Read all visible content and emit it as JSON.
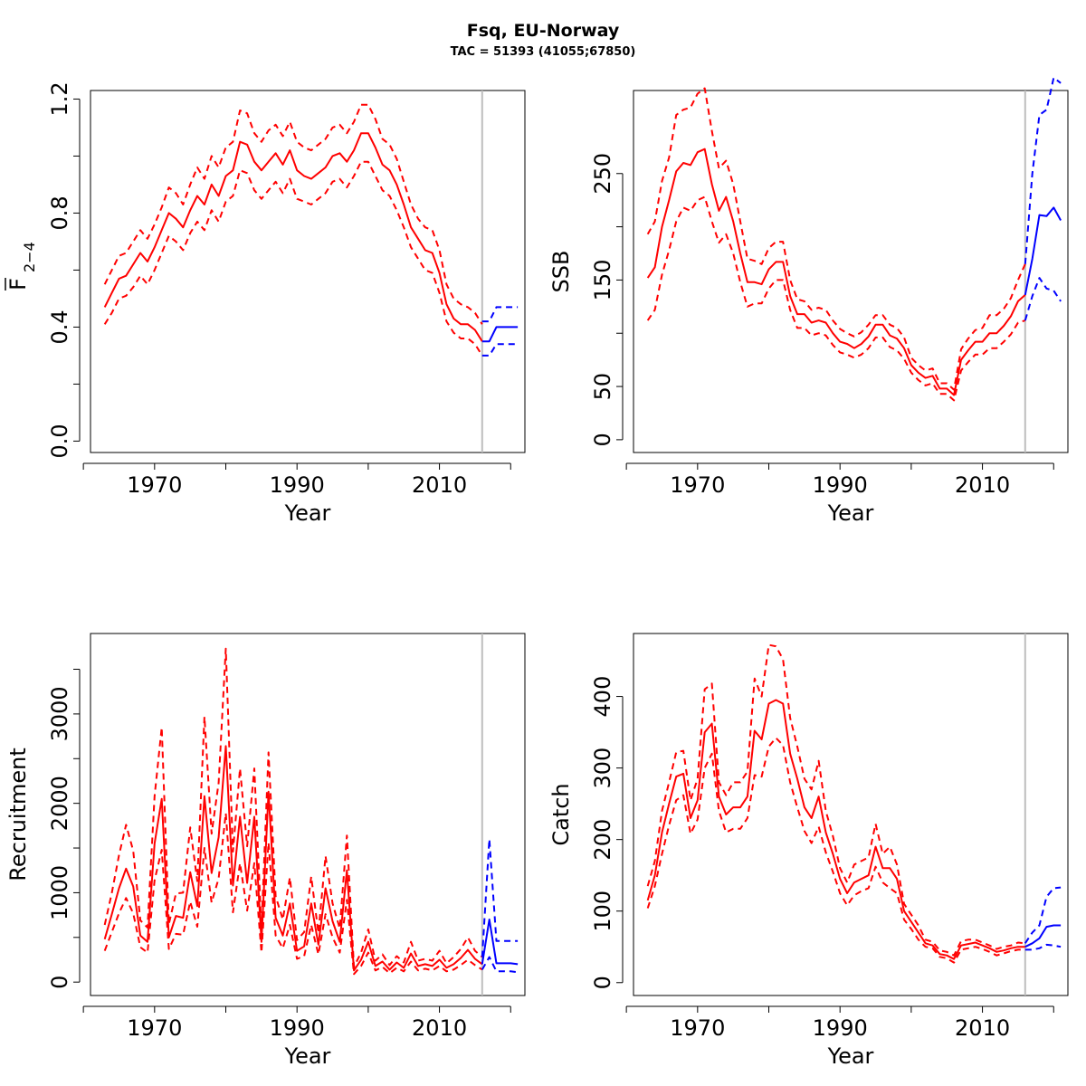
{
  "figure": {
    "title": "Fsq, EU-Norway",
    "subtitle": "TAC = 51393 (41055;67850)"
  },
  "colors": {
    "historical": "#ff0000",
    "forecast": "#0000ff",
    "divider": "#bebebe",
    "axis": "#000000"
  },
  "chart_data": [
    {
      "id": "f",
      "type": "line",
      "xlabel": "Year",
      "ylabel_main": "F",
      "ylabel_sub": "2−4",
      "ylabel_overbar": true,
      "xlim": [
        1961,
        2022
      ],
      "ylim": [
        -0.04,
        1.23
      ],
      "xticks": [
        1960,
        1970,
        1980,
        1990,
        2000,
        2010,
        2020
      ],
      "xtick_labels": [
        "1970",
        "1990",
        "2010"
      ],
      "xtick_label_values": [
        1970,
        1990,
        2010
      ],
      "yticks": [
        0.0,
        0.2,
        0.4,
        0.6,
        0.8,
        1.0,
        1.2
      ],
      "ytick_labels": [
        "0.0",
        "0.4",
        "0.8",
        "1.2"
      ],
      "ytick_label_values": [
        0.0,
        0.4,
        0.8,
        1.2
      ],
      "divider_year": 2016,
      "historical": {
        "x": [
          1963,
          1964,
          1965,
          1966,
          1967,
          1968,
          1969,
          1970,
          1971,
          1972,
          1973,
          1974,
          1975,
          1976,
          1977,
          1978,
          1979,
          1980,
          1981,
          1982,
          1983,
          1984,
          1985,
          1986,
          1987,
          1988,
          1989,
          1990,
          1991,
          1992,
          1993,
          1994,
          1995,
          1996,
          1997,
          1998,
          1999,
          2000,
          2001,
          2002,
          2003,
          2004,
          2005,
          2006,
          2007,
          2008,
          2009,
          2010,
          2011,
          2012,
          2013,
          2014,
          2015,
          2016
        ],
        "estimate": [
          0.47,
          0.52,
          0.57,
          0.58,
          0.62,
          0.66,
          0.63,
          0.68,
          0.74,
          0.8,
          0.78,
          0.75,
          0.81,
          0.86,
          0.83,
          0.9,
          0.86,
          0.93,
          0.95,
          1.05,
          1.04,
          0.98,
          0.95,
          0.98,
          1.01,
          0.97,
          1.02,
          0.95,
          0.93,
          0.92,
          0.94,
          0.96,
          1.0,
          1.01,
          0.98,
          1.02,
          1.08,
          1.08,
          1.03,
          0.97,
          0.95,
          0.9,
          0.83,
          0.75,
          0.71,
          0.67,
          0.66,
          0.59,
          0.48,
          0.43,
          0.41,
          0.41,
          0.39,
          0.35
        ],
        "upper": [
          0.55,
          0.6,
          0.65,
          0.66,
          0.7,
          0.74,
          0.71,
          0.76,
          0.82,
          0.89,
          0.87,
          0.83,
          0.9,
          0.96,
          0.92,
          1.0,
          0.96,
          1.03,
          1.05,
          1.16,
          1.15,
          1.08,
          1.05,
          1.09,
          1.11,
          1.07,
          1.12,
          1.05,
          1.03,
          1.02,
          1.04,
          1.06,
          1.1,
          1.11,
          1.08,
          1.12,
          1.18,
          1.18,
          1.13,
          1.06,
          1.04,
          0.99,
          0.91,
          0.83,
          0.78,
          0.75,
          0.74,
          0.67,
          0.55,
          0.5,
          0.48,
          0.47,
          0.45,
          0.41
        ],
        "lower": [
          0.41,
          0.45,
          0.5,
          0.51,
          0.54,
          0.58,
          0.55,
          0.6,
          0.66,
          0.72,
          0.7,
          0.67,
          0.73,
          0.77,
          0.74,
          0.81,
          0.77,
          0.84,
          0.86,
          0.95,
          0.94,
          0.88,
          0.85,
          0.88,
          0.91,
          0.87,
          0.92,
          0.85,
          0.84,
          0.83,
          0.85,
          0.87,
          0.91,
          0.92,
          0.89,
          0.93,
          0.98,
          0.98,
          0.93,
          0.88,
          0.86,
          0.81,
          0.75,
          0.68,
          0.64,
          0.6,
          0.59,
          0.52,
          0.42,
          0.38,
          0.36,
          0.36,
          0.34,
          0.3
        ]
      },
      "forecast": {
        "x": [
          2016,
          2017,
          2018,
          2019,
          2020,
          2021
        ],
        "estimate": [
          0.35,
          0.35,
          0.4,
          0.4,
          0.4,
          0.4
        ],
        "upper": [
          0.42,
          0.42,
          0.47,
          0.47,
          0.47,
          0.47
        ],
        "lower": [
          0.3,
          0.3,
          0.34,
          0.34,
          0.34,
          0.34
        ]
      }
    },
    {
      "id": "ssb",
      "type": "line",
      "xlabel": "Year",
      "ylabel_main": "SSB",
      "ylabel_sub": "",
      "ylabel_overbar": false,
      "xlim": [
        1961,
        2022
      ],
      "ylim": [
        -12,
        328
      ],
      "xticks": [
        1960,
        1970,
        1980,
        1990,
        2000,
        2010,
        2020
      ],
      "xtick_labels": [
        "1970",
        "1990",
        "2010"
      ],
      "xtick_label_values": [
        1970,
        1990,
        2010
      ],
      "yticks": [
        0,
        50,
        100,
        150,
        200,
        250
      ],
      "ytick_labels": [
        "0",
        "50",
        "150",
        "250"
      ],
      "ytick_label_values": [
        0,
        50,
        150,
        250
      ],
      "divider_year": 2016,
      "historical": {
        "x": [
          1963,
          1964,
          1965,
          1966,
          1967,
          1968,
          1969,
          1970,
          1971,
          1972,
          1973,
          1974,
          1975,
          1976,
          1977,
          1978,
          1979,
          1980,
          1981,
          1982,
          1983,
          1984,
          1985,
          1986,
          1987,
          1988,
          1989,
          1990,
          1991,
          1992,
          1993,
          1994,
          1995,
          1996,
          1997,
          1998,
          1999,
          2000,
          2001,
          2002,
          2003,
          2004,
          2005,
          2006,
          2007,
          2008,
          2009,
          2010,
          2011,
          2012,
          2013,
          2014,
          2015,
          2016
        ],
        "estimate": [
          152,
          162,
          200,
          225,
          252,
          260,
          258,
          270,
          273,
          240,
          215,
          228,
          205,
          175,
          148,
          148,
          146,
          160,
          167,
          167,
          135,
          118,
          118,
          110,
          112,
          110,
          100,
          92,
          90,
          86,
          90,
          97,
          108,
          108,
          98,
          95,
          86,
          70,
          63,
          58,
          60,
          48,
          48,
          42,
          75,
          84,
          92,
          92,
          100,
          100,
          107,
          116,
          130,
          136
        ],
        "upper": [
          193,
          205,
          243,
          265,
          305,
          310,
          312,
          325,
          330,
          290,
          255,
          262,
          240,
          205,
          170,
          168,
          165,
          180,
          186,
          186,
          150,
          132,
          130,
          122,
          124,
          122,
          112,
          104,
          100,
          97,
          101,
          108,
          117,
          117,
          108,
          105,
          96,
          77,
          70,
          65,
          67,
          53,
          53,
          47,
          85,
          95,
          103,
          105,
          117,
          117,
          123,
          133,
          150,
          165
        ],
        "lower": [
          112,
          122,
          155,
          178,
          205,
          218,
          215,
          225,
          228,
          205,
          185,
          193,
          175,
          148,
          125,
          128,
          128,
          142,
          150,
          150,
          122,
          105,
          105,
          98,
          100,
          98,
          89,
          82,
          80,
          77,
          80,
          86,
          96,
          96,
          87,
          84,
          76,
          63,
          56,
          51,
          53,
          43,
          43,
          37,
          65,
          73,
          80,
          80,
          86,
          86,
          92,
          99,
          110,
          112
        ]
      },
      "forecast": {
        "x": [
          2016,
          2017,
          2018,
          2019,
          2020,
          2021
        ],
        "estimate": [
          136,
          170,
          211,
          210,
          218,
          206
        ],
        "upper": [
          165,
          250,
          305,
          310,
          340,
          335
        ],
        "lower": [
          112,
          135,
          152,
          142,
          140,
          130
        ]
      }
    },
    {
      "id": "recruitment",
      "type": "line",
      "xlabel": "Year",
      "ylabel_main": "Recruitment",
      "ylabel_sub": "",
      "ylabel_overbar": false,
      "xlim": [
        1961,
        2022
      ],
      "ylim": [
        -150,
        3900
      ],
      "xticks": [
        1960,
        1970,
        1980,
        1990,
        2000,
        2010,
        2020
      ],
      "xtick_labels": [
        "1970",
        "1990",
        "2010"
      ],
      "xtick_label_values": [
        1970,
        1990,
        2010
      ],
      "yticks": [
        0,
        500,
        1000,
        1500,
        2000,
        2500,
        3000,
        3500
      ],
      "ytick_labels": [
        "0",
        "1000",
        "2000",
        "3000"
      ],
      "ytick_label_values": [
        0,
        1000,
        2000,
        3000
      ],
      "divider_year": 2016,
      "historical": {
        "x": [
          1963,
          1964,
          1965,
          1966,
          1967,
          1968,
          1969,
          1970,
          1971,
          1972,
          1973,
          1974,
          1975,
          1976,
          1977,
          1978,
          1979,
          1980,
          1981,
          1982,
          1983,
          1984,
          1985,
          1986,
          1987,
          1988,
          1989,
          1990,
          1991,
          1992,
          1993,
          1994,
          1995,
          1996,
          1997,
          1998,
          1999,
          2000,
          2001,
          2002,
          2003,
          2004,
          2005,
          2006,
          2007,
          2008,
          2009,
          2010,
          2011,
          2012,
          2013,
          2014,
          2015,
          2016
        ],
        "estimate": [
          480,
          760,
          1050,
          1270,
          1070,
          520,
          450,
          1550,
          2050,
          500,
          740,
          720,
          1230,
          850,
          2080,
          1220,
          1620,
          2640,
          1080,
          1850,
          1110,
          1850,
          450,
          2130,
          720,
          520,
          880,
          350,
          400,
          880,
          420,
          1050,
          680,
          450,
          1250,
          130,
          250,
          450,
          180,
          230,
          140,
          220,
          160,
          320,
          180,
          200,
          180,
          250,
          160,
          200,
          270,
          360,
          260,
          200
        ],
        "upper": [
          640,
          1000,
          1420,
          1760,
          1470,
          690,
          610,
          2080,
          2850,
          650,
          990,
          1000,
          1730,
          1130,
          2970,
          1660,
          2230,
          3730,
          1460,
          2390,
          1520,
          2390,
          600,
          2570,
          960,
          700,
          1170,
          470,
          560,
          1180,
          550,
          1410,
          880,
          600,
          1640,
          170,
          330,
          590,
          240,
          310,
          190,
          290,
          220,
          450,
          240,
          260,
          240,
          350,
          210,
          280,
          370,
          500,
          350,
          280
        ],
        "lower": [
          350,
          560,
          770,
          940,
          770,
          390,
          330,
          1140,
          1480,
          370,
          540,
          530,
          900,
          620,
          1500,
          890,
          1160,
          1890,
          780,
          1330,
          800,
          1330,
          330,
          1560,
          520,
          380,
          640,
          260,
          290,
          640,
          310,
          760,
          500,
          330,
          920,
          90,
          180,
          330,
          130,
          170,
          100,
          160,
          120,
          230,
          130,
          150,
          130,
          180,
          120,
          140,
          190,
          250,
          190,
          140
        ]
      },
      "forecast": {
        "x": [
          2016,
          2017,
          2018,
          2019,
          2020,
          2021
        ],
        "estimate": [
          200,
          700,
          210,
          210,
          210,
          200
        ],
        "upper": [
          280,
          1600,
          460,
          460,
          460,
          460
        ],
        "lower": [
          140,
          280,
          120,
          120,
          120,
          110
        ]
      }
    },
    {
      "id": "catch",
      "type": "line",
      "xlabel": "Year",
      "ylabel_main": "Catch",
      "ylabel_sub": "",
      "ylabel_overbar": false,
      "xlim": [
        1961,
        2022
      ],
      "ylim": [
        -18,
        488
      ],
      "xticks": [
        1960,
        1970,
        1980,
        1990,
        2000,
        2010,
        2020
      ],
      "xtick_labels": [
        "1970",
        "1990",
        "2010"
      ],
      "xtick_label_values": [
        1970,
        1990,
        2010
      ],
      "yticks": [
        0,
        100,
        200,
        300,
        400
      ],
      "ytick_labels": [
        "0",
        "100",
        "200",
        "300",
        "400"
      ],
      "ytick_label_values": [
        0,
        100,
        200,
        300,
        400
      ],
      "divider_year": 2016,
      "historical": {
        "x": [
          1963,
          1964,
          1965,
          1966,
          1967,
          1968,
          1969,
          1970,
          1971,
          1972,
          1973,
          1974,
          1975,
          1976,
          1977,
          1978,
          1979,
          1980,
          1981,
          1982,
          1983,
          1984,
          1985,
          1986,
          1987,
          1988,
          1989,
          1990,
          1991,
          1992,
          1993,
          1994,
          1995,
          1996,
          1997,
          1998,
          1999,
          2000,
          2001,
          2002,
          2003,
          2004,
          2005,
          2006,
          2007,
          2008,
          2009,
          2010,
          2011,
          2012,
          2013,
          2014,
          2015,
          2016
        ],
        "estimate": [
          115,
          150,
          210,
          250,
          288,
          292,
          230,
          255,
          350,
          362,
          260,
          235,
          245,
          245,
          260,
          352,
          340,
          390,
          395,
          390,
          320,
          285,
          245,
          230,
          260,
          210,
          180,
          145,
          125,
          140,
          145,
          150,
          190,
          160,
          160,
          145,
          100,
          85,
          70,
          55,
          52,
          40,
          38,
          33,
          52,
          54,
          56,
          52,
          48,
          43,
          45,
          48,
          50,
          50
        ],
        "upper": [
          135,
          170,
          240,
          280,
          322,
          324,
          255,
          285,
          410,
          418,
          280,
          262,
          280,
          280,
          295,
          425,
          400,
          472,
          470,
          452,
          370,
          330,
          285,
          270,
          310,
          240,
          205,
          160,
          140,
          165,
          170,
          175,
          222,
          180,
          190,
          165,
          110,
          95,
          80,
          60,
          57,
          45,
          43,
          38,
          58,
          60,
          60,
          56,
          52,
          47,
          50,
          52,
          56,
          55
        ],
        "lower": [
          104,
          135,
          180,
          220,
          255,
          262,
          208,
          228,
          300,
          320,
          240,
          210,
          215,
          215,
          230,
          290,
          288,
          330,
          342,
          332,
          280,
          245,
          212,
          195,
          218,
          182,
          155,
          125,
          108,
          122,
          128,
          132,
          162,
          140,
          132,
          125,
          88,
          75,
          60,
          50,
          48,
          36,
          34,
          28,
          46,
          48,
          50,
          47,
          43,
          38,
          41,
          44,
          46,
          46
        ]
      },
      "forecast": {
        "x": [
          2016,
          2017,
          2018,
          2019,
          2020,
          2021
        ],
        "estimate": [
          50,
          55,
          62,
          78,
          80,
          80
        ],
        "upper": [
          55,
          70,
          80,
          120,
          132,
          133
        ],
        "lower": [
          46,
          46,
          48,
          53,
          52,
          50
        ]
      }
    }
  ]
}
